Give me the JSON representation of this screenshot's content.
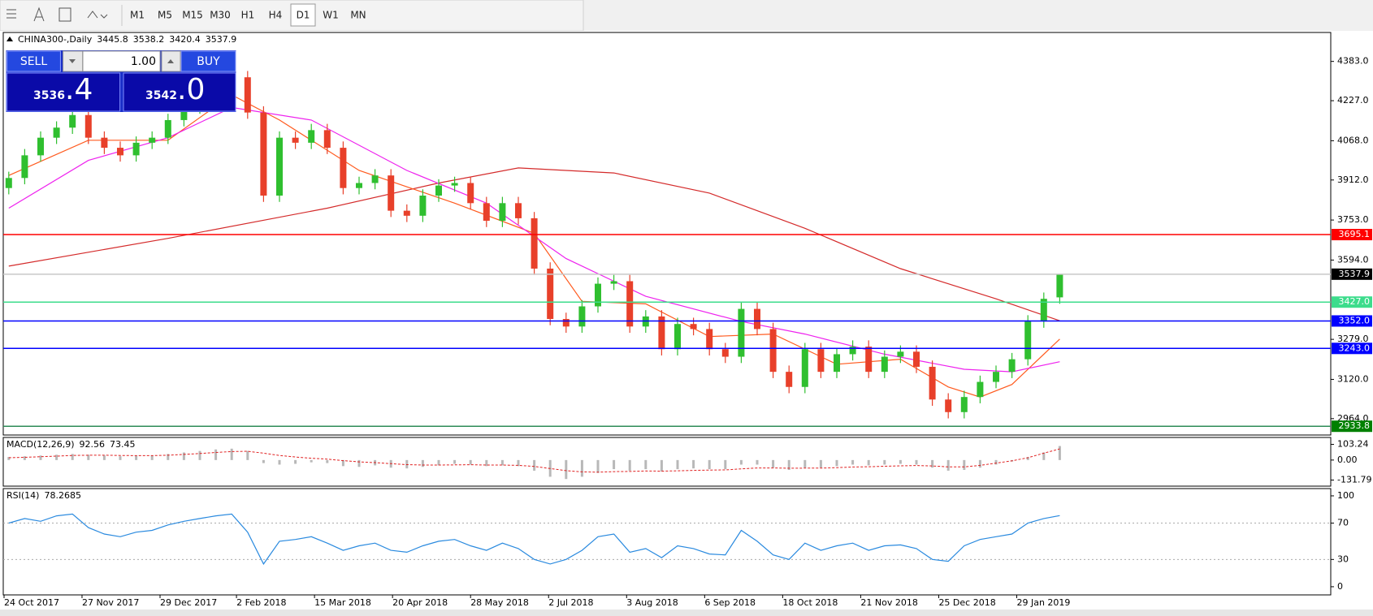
{
  "toolbar": {
    "timeframes": [
      "M1",
      "M5",
      "M15",
      "M30",
      "H1",
      "H4",
      "D1",
      "W1",
      "MN"
    ],
    "selected": "D1"
  },
  "trade_panel": {
    "sell_label": "SELL",
    "buy_label": "BUY",
    "volume": "1.00",
    "bid": {
      "main": "3536",
      "fraction": ".4"
    },
    "ask": {
      "main": "3542",
      "fraction": ".0"
    }
  },
  "chart_data": [
    {
      "type": "candlestick",
      "title": "CHINA300-,Daily",
      "header_values": [
        3445.8,
        3538.2,
        3420.4,
        3537.9
      ],
      "up_color": "#2fbf2f",
      "down_color": "#e8402a",
      "open": [
        3880,
        3920,
        4010,
        4080,
        4120,
        4170,
        4080,
        4040,
        4010,
        4060,
        4080,
        4150,
        4200,
        4250,
        4300,
        4320,
        4180,
        3850,
        4080,
        4060,
        4110,
        4040,
        3880,
        3900,
        3930,
        3790,
        3770,
        3850,
        3890,
        3900,
        3820,
        3750,
        3820,
        3760,
        3560,
        3360,
        3330,
        3410,
        3500,
        3510,
        3330,
        3370,
        3240,
        3340,
        3320,
        3240,
        3210,
        3400,
        3320,
        3150,
        3090,
        3240,
        3150,
        3220,
        3250,
        3150,
        3210,
        3230,
        3170,
        3040,
        2990,
        3050,
        3110,
        3150,
        3200,
        3350,
        3445.8
      ],
      "high": [
        3945,
        4035,
        4105,
        4145,
        4195,
        4195,
        4105,
        4065,
        4085,
        4105,
        4175,
        4225,
        4275,
        4325,
        4345,
        4345,
        4205,
        4105,
        4105,
        4135,
        4135,
        4065,
        3925,
        3955,
        3955,
        3815,
        3875,
        3915,
        3925,
        3925,
        3845,
        3845,
        3845,
        3785,
        3585,
        3385,
        3435,
        3525,
        3535,
        3535,
        3395,
        3395,
        3365,
        3365,
        3345,
        3265,
        3425,
        3425,
        3345,
        3175,
        3265,
        3265,
        3245,
        3275,
        3275,
        3235,
        3255,
        3255,
        3195,
        3065,
        3075,
        3135,
        3175,
        3225,
        3375,
        3465,
        3538.2
      ],
      "low": [
        3855,
        3895,
        3985,
        4055,
        4095,
        4055,
        4015,
        3985,
        3985,
        4035,
        4055,
        4125,
        4175,
        4225,
        4275,
        4155,
        3825,
        3825,
        4035,
        4035,
        4015,
        3855,
        3855,
        3875,
        3765,
        3745,
        3745,
        3825,
        3865,
        3795,
        3725,
        3725,
        3735,
        3535,
        3335,
        3305,
        3305,
        3385,
        3475,
        3305,
        3305,
        3215,
        3215,
        3295,
        3215,
        3185,
        3185,
        3295,
        3125,
        3065,
        3065,
        3125,
        3125,
        3195,
        3125,
        3125,
        3185,
        3145,
        3015,
        2965,
        2965,
        3025,
        3085,
        3125,
        3175,
        3325,
        3420.4
      ],
      "close": [
        3920,
        4010,
        4080,
        4120,
        4170,
        4080,
        4040,
        4010,
        4060,
        4080,
        4150,
        4200,
        4250,
        4300,
        4320,
        4180,
        3850,
        4080,
        4060,
        4110,
        4040,
        3880,
        3900,
        3930,
        3790,
        3770,
        3850,
        3890,
        3900,
        3820,
        3750,
        3820,
        3760,
        3560,
        3360,
        3330,
        3410,
        3500,
        3510,
        3330,
        3370,
        3240,
        3340,
        3320,
        3240,
        3210,
        3400,
        3320,
        3150,
        3090,
        3240,
        3150,
        3220,
        3250,
        3150,
        3210,
        3230,
        3170,
        3040,
        2990,
        3050,
        3110,
        3150,
        3200,
        3350,
        3440,
        3537.9
      ],
      "series": [
        {
          "color": "#d42a2a",
          "x": [
            0,
            10,
            20,
            27,
            32,
            38,
            44,
            50,
            56,
            62,
            66
          ],
          "values": [
            3570,
            3680,
            3800,
            3900,
            3960,
            3940,
            3860,
            3720,
            3560,
            3440,
            3353
          ]
        },
        {
          "color": "#ff5a1e",
          "x": [
            0,
            5,
            10,
            14,
            17,
            22,
            28,
            33,
            36,
            40,
            44,
            48,
            52,
            56,
            59,
            61,
            63,
            66
          ],
          "values": [
            3930,
            4070,
            4070,
            4250,
            4150,
            3950,
            3820,
            3700,
            3430,
            3420,
            3290,
            3300,
            3180,
            3200,
            3090,
            3050,
            3100,
            3280
          ]
        },
        {
          "color": "#ee22ee",
          "x": [
            0,
            5,
            10,
            14,
            19,
            25,
            30,
            35,
            40,
            46,
            50,
            55,
            60,
            63,
            66
          ],
          "values": [
            3800,
            3990,
            4080,
            4200,
            4150,
            3950,
            3820,
            3600,
            3450,
            3350,
            3300,
            3220,
            3160,
            3150,
            3190
          ]
        }
      ],
      "levels": [
        {
          "value": 3695.1,
          "color": "#ff0000",
          "box_color": "#ff0000"
        },
        {
          "value": 3537.9,
          "color": "#c8c8c8",
          "box_color": "#000000"
        },
        {
          "value": 3427,
          "label": "3427.0",
          "color": "#3cdc8c",
          "box_color": "#3cdc8c"
        },
        {
          "value": 3352,
          "label": "3352.0",
          "color": "#0000ff",
          "box_color": "#0000ff"
        },
        {
          "value": 3243,
          "label": "3243.0",
          "color": "#0000ff",
          "box_color": "#0000ff"
        },
        {
          "value": 2933.8,
          "color": "#2e8b57",
          "box_color": "#008000"
        }
      ],
      "ylim": [
        2899,
        4498
      ],
      "yticks": [
        {
          "value": 4383,
          "label": "4383.0"
        },
        {
          "value": 4227,
          "label": "4227.0"
        },
        {
          "value": 4068,
          "label": "4068.0"
        },
        {
          "value": 3912,
          "label": "3912.0"
        },
        {
          "value": 3753,
          "label": "3753.0"
        },
        {
          "value": 3594,
          "label": "3594.0"
        },
        {
          "value": 3279,
          "label": "3279.0"
        },
        {
          "value": 3120,
          "label": "3120.0"
        },
        {
          "value": 2964,
          "label": "2964.0"
        }
      ],
      "xticks": [
        {
          "value": -0.3,
          "label": "24 Oct 2017"
        },
        {
          "value": 4.6,
          "label": "27 Nov 2017"
        },
        {
          "value": 9.5,
          "label": "29 Dec 2017"
        },
        {
          "value": 14.3,
          "label": "2 Feb 2018"
        },
        {
          "value": 19.2,
          "label": "15 Mar 2018"
        },
        {
          "value": 24.1,
          "label": "20 Apr 2018"
        },
        {
          "value": 29,
          "label": "28 May 2018"
        },
        {
          "value": 33.9,
          "label": "2 Jul 2018"
        },
        {
          "value": 38.8,
          "label": "3 Aug 2018"
        },
        {
          "value": 43.7,
          "label": "6 Sep 2018"
        },
        {
          "value": 48.6,
          "label": "18 Oct 2018"
        },
        {
          "value": 53.5,
          "label": "21 Nov 2018"
        },
        {
          "value": 58.4,
          "label": "25 Dec 2018"
        },
        {
          "value": 63.3,
          "label": "29 Jan 2019"
        }
      ]
    },
    {
      "type": "macd",
      "title": "MACD(12,26,9)",
      "header_values": [
        92.56,
        73.45
      ],
      "color": "#b8b8b8",
      "signal_color": "#e02020",
      "values": [
        20,
        25,
        30,
        35,
        40,
        35,
        30,
        25,
        28,
        30,
        40,
        50,
        60,
        70,
        75,
        60,
        -20,
        -30,
        -25,
        -15,
        -20,
        -40,
        -45,
        -35,
        -50,
        -55,
        -45,
        -35,
        -25,
        -30,
        -40,
        -35,
        -40,
        -70,
        -110,
        -125,
        -110,
        -85,
        -60,
        -70,
        -60,
        -75,
        -60,
        -55,
        -60,
        -60,
        -30,
        -30,
        -50,
        -65,
        -50,
        -50,
        -40,
        -30,
        -35,
        -30,
        -25,
        -30,
        -50,
        -70,
        -65,
        -50,
        -30,
        -10,
        20,
        50,
        92.56
      ],
      "signal": [
        15,
        18,
        22,
        26,
        30,
        32,
        32,
        30,
        29,
        29,
        32,
        37,
        43,
        50,
        56,
        58,
        45,
        30,
        20,
        12,
        6,
        -4,
        -12,
        -17,
        -24,
        -30,
        -33,
        -33,
        -32,
        -31,
        -33,
        -33,
        -35,
        -42,
        -56,
        -70,
        -78,
        -80,
        -76,
        -75,
        -72,
        -73,
        -71,
        -68,
        -66,
        -65,
        -58,
        -52,
        -52,
        -54,
        -53,
        -53,
        -50,
        -46,
        -44,
        -41,
        -38,
        -36,
        -39,
        -45,
        -45,
        -35,
        -20,
        -5,
        15,
        45,
        73.45
      ],
      "ylim": [
        -172,
        149
      ],
      "yticks": [
        103.24,
        {
          "value": 0,
          "label": "0.00"
        },
        -131.79
      ]
    },
    {
      "type": "line",
      "title": "RSI(14)",
      "header_values": [
        78.2685
      ],
      "color": "#2a8adf",
      "values": [
        70,
        75,
        72,
        78,
        80,
        65,
        58,
        55,
        60,
        62,
        68,
        72,
        75,
        78,
        80,
        60,
        25,
        50,
        52,
        55,
        48,
        40,
        45,
        48,
        40,
        38,
        45,
        50,
        52,
        45,
        40,
        48,
        42,
        30,
        25,
        30,
        40,
        55,
        58,
        38,
        42,
        32,
        45,
        42,
        36,
        35,
        62,
        50,
        35,
        30,
        48,
        40,
        45,
        48,
        40,
        45,
        46,
        42,
        30,
        28,
        45,
        52,
        55,
        58,
        70,
        75,
        78.2685
      ],
      "dotted_levels": [
        70,
        30
      ],
      "ylim": [
        -9,
        108
      ],
      "yticks": [
        100,
        70,
        30,
        0
      ]
    }
  ]
}
